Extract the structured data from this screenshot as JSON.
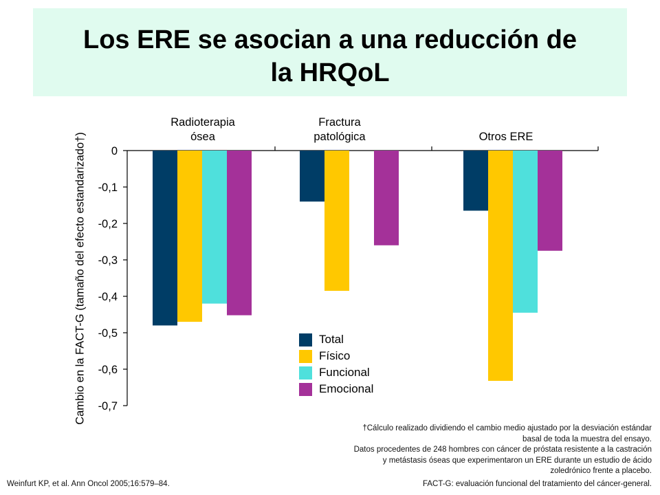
{
  "title": {
    "line1": "Los ERE se asocian a una reducción de",
    "line2": "la HRQoL"
  },
  "colors": {
    "title_bg": "#e0fbef",
    "Total": "#003d66",
    "Fisico": "#ffc800",
    "Funcional": "#4fe0dc",
    "Emocional": "#a43199"
  },
  "chart_data": {
    "type": "bar",
    "categories": [
      "Radioterapia ósea",
      "Fractura patológica",
      "Otros ERE"
    ],
    "category_labels": [
      [
        "Radioterapia",
        "ósea"
      ],
      [
        "Fractura",
        "patológica"
      ],
      [
        "Otros ERE"
      ]
    ],
    "series": [
      {
        "name": "Total",
        "values": [
          -0.48,
          -0.14,
          -0.165
        ]
      },
      {
        "name": "Físico",
        "values": [
          -0.47,
          -0.385,
          -0.632
        ]
      },
      {
        "name": "Funcional",
        "values": [
          -0.42,
          null,
          -0.445
        ]
      },
      {
        "name": "Emocional",
        "values": [
          -0.452,
          -0.26,
          -0.275
        ]
      }
    ],
    "ylabel": "Cambio en la FACT-G (tamaño del efecto estandarizado†)",
    "ylim": [
      -0.7,
      0
    ],
    "yticks": [
      0,
      -0.1,
      -0.2,
      -0.3,
      -0.4,
      -0.5,
      -0.6,
      -0.7
    ],
    "ytick_labels": [
      "0",
      "-0,1",
      "-0,2",
      "-0,3",
      "-0,4",
      "-0,5",
      "-0,6",
      "-0,7"
    ],
    "legend_position": "center-bottom",
    "grid": false
  },
  "footnote": {
    "line1": "†Cálculo realizado dividiendo el cambio medio ajustado por la desviación estándar",
    "line2": "basal de toda la muestra del ensayo.",
    "line3": "Datos procedentes de 248 hombres con cáncer de próstata resistente a la castración",
    "line4": "y metástasis óseas que experimentaron un ERE durante un estudio de ácido",
    "line5": "zoledrónico frente a placebo.",
    "line6": "FACT-G: evaluación funcional del tratamiento del cáncer-general."
  },
  "source": "Weinfurt KP, et al. Ann Oncol 2005;16:579–84."
}
